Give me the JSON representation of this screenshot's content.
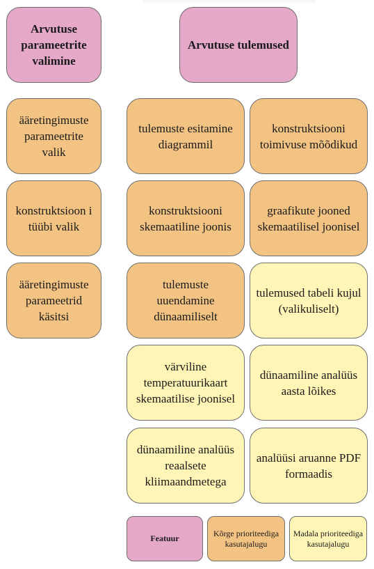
{
  "features": {
    "params": "Arvutuse parameetrite valimine",
    "results": "Arvutuse tulemused"
  },
  "left_column": [
    "ääretingimuste parameetrite valik",
    "konstruktsioon i tüübi valik",
    "ääretingimuste parameetrid käsitsi"
  ],
  "results_grid": [
    {
      "text": "tulemuste esitamine diagrammil",
      "priority": "high"
    },
    {
      "text": "konstruktsiooni toimivuse mõõdikud",
      "priority": "high"
    },
    {
      "text": "konstruktsiooni skemaatiline joonis",
      "priority": "high"
    },
    {
      "text": "graafikute jooned skemaatilisel joonisel",
      "priority": "high"
    },
    {
      "text": "tulemuste uuendamine dünaamiliselt",
      "priority": "high"
    },
    {
      "text": "tulemused tabeli kujul (valikuliselt)",
      "priority": "low"
    },
    {
      "text": "värviline temperatuurikaart skemaatilise joonisel",
      "priority": "low"
    },
    {
      "text": "dünaamiline analüüs aasta lõikes",
      "priority": "low"
    },
    {
      "text": "dünaamiline analüüs reaalsete kliimaandmetega",
      "priority": "low"
    },
    {
      "text": "analüüsi aruanne PDF formaadis",
      "priority": "low"
    }
  ],
  "legend": {
    "feature": "Featuur",
    "high": "Kõrge prioriteediga kasutajalugu",
    "low": "Madala prioriteediga kasutajalugu"
  },
  "colors": {
    "feature": "#e5a8c8",
    "high_priority": "#f3c384",
    "low_priority": "#fff5b6",
    "border": "#6e6e6e"
  }
}
